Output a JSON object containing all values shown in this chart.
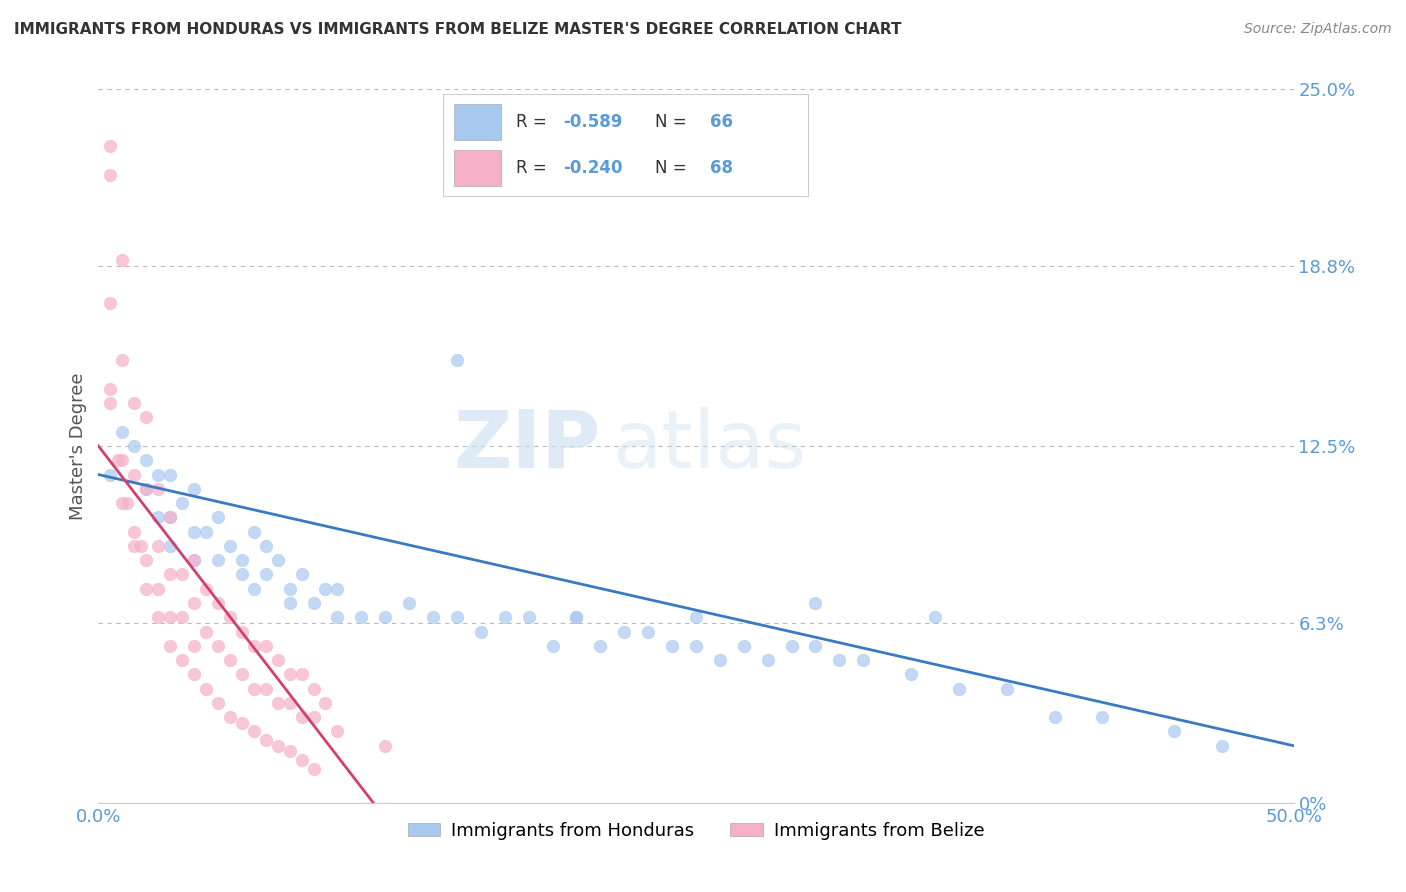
{
  "title": "IMMIGRANTS FROM HONDURAS VS IMMIGRANTS FROM BELIZE MASTER'S DEGREE CORRELATION CHART",
  "source_text": "Source: ZipAtlas.com",
  "ylabel": "Master's Degree",
  "xlim": [
    0.0,
    0.5
  ],
  "ylim": [
    0.0,
    0.25
  ],
  "ytick_labels_right": [
    "0%",
    "6.3%",
    "12.5%",
    "18.8%",
    "25.0%"
  ],
  "ytick_vals_right": [
    0.0,
    0.063,
    0.125,
    0.188,
    0.25
  ],
  "legend_labels_bottom": [
    "Immigrants from Honduras",
    "Immigrants from Belize"
  ],
  "blue_color": "#a8c8f0",
  "pink_color": "#f5b0c8",
  "trendline_blue_color": "#3a7abf",
  "trendline_pink_color": "#d04070",
  "watermark_zip": "ZIP",
  "watermark_atlas": "atlas",
  "grid_color": "#bbbbbb",
  "background_color": "#ffffff",
  "title_color": "#333333",
  "axis_label_color": "#555555",
  "right_axis_color": "#5b9bd5",
  "bottom_tick_color": "#5b9bd5",
  "legend_stat_color": "#5b9bd5",
  "legend_label_color": "#333333",
  "blue_scatter_x": [
    0.005,
    0.01,
    0.015,
    0.02,
    0.02,
    0.025,
    0.025,
    0.03,
    0.03,
    0.03,
    0.035,
    0.04,
    0.04,
    0.04,
    0.045,
    0.05,
    0.05,
    0.055,
    0.06,
    0.06,
    0.065,
    0.065,
    0.07,
    0.07,
    0.075,
    0.08,
    0.08,
    0.085,
    0.09,
    0.095,
    0.1,
    0.1,
    0.11,
    0.12,
    0.13,
    0.14,
    0.15,
    0.16,
    0.17,
    0.18,
    0.19,
    0.2,
    0.21,
    0.22,
    0.23,
    0.24,
    0.25,
    0.26,
    0.27,
    0.28,
    0.29,
    0.3,
    0.31,
    0.32,
    0.34,
    0.36,
    0.38,
    0.4,
    0.42,
    0.45,
    0.47,
    0.15,
    0.2,
    0.25,
    0.3,
    0.35
  ],
  "blue_scatter_y": [
    0.115,
    0.13,
    0.125,
    0.12,
    0.11,
    0.115,
    0.1,
    0.115,
    0.1,
    0.09,
    0.105,
    0.11,
    0.095,
    0.085,
    0.095,
    0.1,
    0.085,
    0.09,
    0.085,
    0.08,
    0.095,
    0.075,
    0.09,
    0.08,
    0.085,
    0.075,
    0.07,
    0.08,
    0.07,
    0.075,
    0.075,
    0.065,
    0.065,
    0.065,
    0.07,
    0.065,
    0.065,
    0.06,
    0.065,
    0.065,
    0.055,
    0.065,
    0.055,
    0.06,
    0.06,
    0.055,
    0.055,
    0.05,
    0.055,
    0.05,
    0.055,
    0.055,
    0.05,
    0.05,
    0.045,
    0.04,
    0.04,
    0.03,
    0.03,
    0.025,
    0.02,
    0.155,
    0.065,
    0.065,
    0.07,
    0.065
  ],
  "pink_scatter_x": [
    0.005,
    0.005,
    0.005,
    0.008,
    0.01,
    0.01,
    0.01,
    0.012,
    0.015,
    0.015,
    0.015,
    0.018,
    0.02,
    0.02,
    0.02,
    0.025,
    0.025,
    0.025,
    0.03,
    0.03,
    0.03,
    0.035,
    0.035,
    0.04,
    0.04,
    0.04,
    0.045,
    0.045,
    0.05,
    0.05,
    0.055,
    0.055,
    0.06,
    0.06,
    0.065,
    0.065,
    0.07,
    0.07,
    0.075,
    0.075,
    0.08,
    0.08,
    0.085,
    0.085,
    0.09,
    0.09,
    0.095,
    0.1,
    0.005,
    0.01,
    0.015,
    0.02,
    0.025,
    0.03,
    0.035,
    0.04,
    0.045,
    0.05,
    0.055,
    0.06,
    0.065,
    0.07,
    0.075,
    0.08,
    0.085,
    0.09,
    0.12,
    0.005
  ],
  "pink_scatter_y": [
    0.22,
    0.175,
    0.14,
    0.12,
    0.19,
    0.155,
    0.12,
    0.105,
    0.14,
    0.115,
    0.095,
    0.09,
    0.135,
    0.11,
    0.085,
    0.11,
    0.09,
    0.075,
    0.1,
    0.08,
    0.065,
    0.08,
    0.065,
    0.085,
    0.07,
    0.055,
    0.075,
    0.06,
    0.07,
    0.055,
    0.065,
    0.05,
    0.06,
    0.045,
    0.055,
    0.04,
    0.055,
    0.04,
    0.05,
    0.035,
    0.045,
    0.035,
    0.045,
    0.03,
    0.04,
    0.03,
    0.035,
    0.025,
    0.145,
    0.105,
    0.09,
    0.075,
    0.065,
    0.055,
    0.05,
    0.045,
    0.04,
    0.035,
    0.03,
    0.028,
    0.025,
    0.022,
    0.02,
    0.018,
    0.015,
    0.012,
    0.02,
    0.23
  ]
}
